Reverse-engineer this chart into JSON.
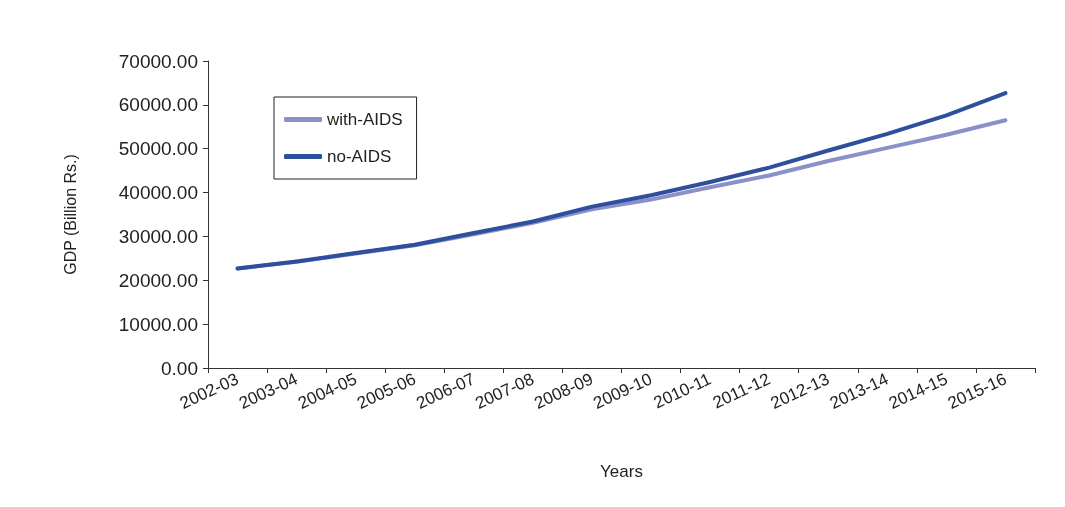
{
  "chart_data": {
    "type": "line",
    "xlabel": "Years",
    "ylabel": "GDP (Billion Rs.)",
    "categories": [
      "2002-03",
      "2003-04",
      "2004-05",
      "2005-06",
      "2006-07",
      "2007-08",
      "2008-09",
      "2009-10",
      "2010-11",
      "2011-12",
      "2012-13",
      "2013-14",
      "2014-15",
      "2015-16"
    ],
    "series": [
      {
        "name": "with-AIDS",
        "color": "#8a90c8",
        "values": [
          22700,
          24200,
          26100,
          28000,
          30500,
          33100,
          36200,
          38400,
          41200,
          43900,
          47200,
          50200,
          53200,
          56500
        ]
      },
      {
        "name": "no-AIDS",
        "color": "#2e4f9e",
        "values": [
          22700,
          24300,
          26200,
          28100,
          30800,
          33400,
          36800,
          39400,
          42400,
          45700,
          49600,
          53400,
          57600,
          62700
        ]
      }
    ],
    "ylim": [
      0,
      70000
    ],
    "yticks": [
      {
        "value": 0,
        "label": "0.00"
      },
      {
        "value": 10000,
        "label": "10000.00"
      },
      {
        "value": 20000,
        "label": "20000.00"
      },
      {
        "value": 30000,
        "label": "30000.00"
      },
      {
        "value": 40000,
        "label": "40000.00"
      },
      {
        "value": 50000,
        "label": "50000.00"
      },
      {
        "value": 60000,
        "label": "60000.00"
      },
      {
        "value": 70000,
        "label": "70000.00"
      }
    ],
    "grid": false,
    "legend": "top left",
    "marker": "none",
    "line_style": "solid"
  }
}
